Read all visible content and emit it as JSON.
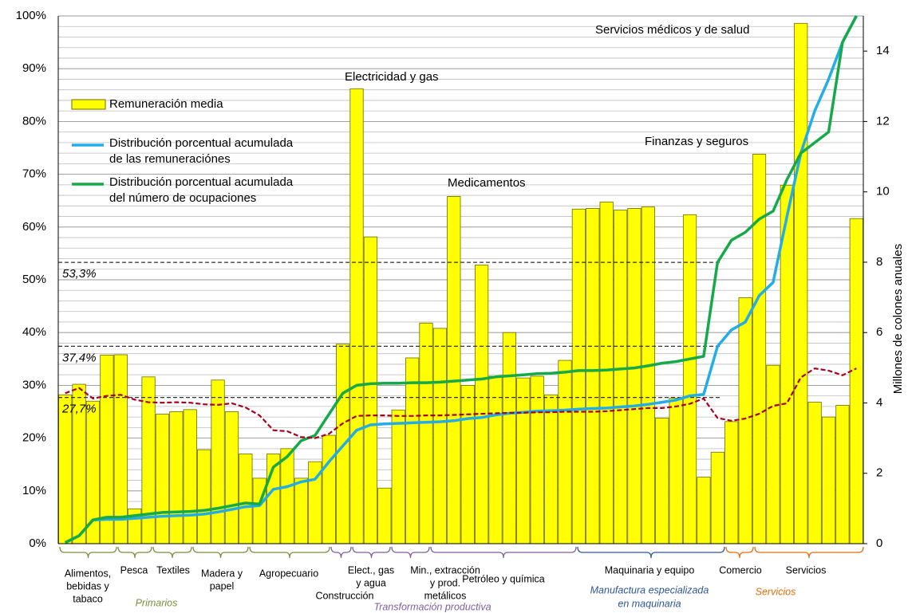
{
  "chart_data": {
    "type": "bar",
    "categories": [
      null,
      null,
      null,
      null,
      null,
      null,
      null,
      null,
      null,
      null,
      null,
      null,
      null,
      null,
      null,
      null,
      null,
      null,
      null,
      null,
      null,
      null,
      null,
      null,
      null,
      null,
      null,
      null,
      null,
      null,
      null,
      null,
      null,
      null,
      null,
      null,
      null,
      null,
      null,
      null,
      null,
      null,
      null,
      null,
      null,
      null,
      null,
      null,
      null,
      null,
      null,
      null,
      null,
      null,
      null,
      null,
      null,
      null
    ],
    "series": [
      {
        "name": "Remuneración media",
        "type": "bar",
        "axis": "y2",
        "color": "#ffff00",
        "values": [
          4.23,
          4.53,
          4.05,
          5.36,
          5.37,
          0.99,
          4.74,
          3.68,
          3.75,
          3.81,
          2.67,
          4.65,
          3.75,
          2.55,
          1.86,
          2.55,
          2.7,
          1.86,
          2.33,
          3.08,
          5.67,
          12.93,
          8.72,
          1.58,
          3.8,
          5.28,
          6.27,
          6.12,
          9.87,
          4.5,
          7.92,
          4.76,
          6.0,
          4.71,
          4.76,
          4.23,
          5.21,
          9.51,
          9.53,
          9.71,
          9.48,
          9.53,
          9.57,
          3.57,
          4.14,
          9.35,
          1.89,
          2.6,
          3.47,
          6.99,
          11.07,
          5.07,
          10.19,
          14.79,
          4.02,
          3.6,
          3.93,
          9.24
        ]
      },
      {
        "name": "Distribución porcentual acumulada de las remuneraciónes",
        "type": "line",
        "color": "#22ade6",
        "values": [
          0.2,
          1.5,
          4.5,
          4.6,
          4.6,
          4.8,
          5.0,
          5.2,
          5.3,
          5.4,
          5.6,
          6.0,
          6.5,
          7.0,
          7.2,
          10.3,
          10.8,
          11.7,
          12.2,
          15.5,
          18.5,
          21.5,
          22.5,
          22.7,
          22.8,
          22.9,
          23.0,
          23.1,
          23.3,
          23.7,
          23.9,
          24.4,
          24.7,
          24.9,
          25.1,
          25.2,
          25.3,
          25.5,
          25.6,
          25.7,
          25.9,
          26.1,
          26.4,
          26.8,
          27.2,
          28.0,
          28.3,
          37.4,
          40.5,
          42.0,
          47.0,
          49.5,
          62,
          74,
          82,
          88,
          95,
          100
        ]
      },
      {
        "name": "Distribución porcentual acumulada del número de ocupaciones",
        "type": "line",
        "color": "#16a94a",
        "values": [
          0.2,
          1.5,
          4.5,
          5.0,
          5.0,
          5.3,
          5.6,
          5.9,
          6.0,
          6.1,
          6.3,
          6.7,
          7.2,
          7.7,
          7.5,
          14.5,
          16.5,
          19.5,
          20.5,
          24.5,
          28.5,
          30.0,
          30.3,
          30.4,
          30.4,
          30.5,
          30.5,
          30.6,
          30.8,
          31.0,
          31.2,
          31.6,
          31.8,
          32.0,
          32.2,
          32.3,
          32.5,
          32.8,
          32.8,
          32.9,
          33.1,
          33.3,
          33.7,
          34.2,
          34.5,
          35.0,
          35.5,
          53.3,
          57.5,
          59.0,
          61.5,
          63.0,
          69.0,
          74.0,
          76.0,
          78.0,
          95.0,
          100
        ]
      },
      {
        "type": "line",
        "dash": true,
        "color": "#a8001c",
        "values": [
          28.5,
          29.5,
          27.5,
          28,
          28.2,
          27.3,
          26.8,
          26.7,
          26.8,
          26.7,
          26.4,
          26.3,
          26.6,
          25.8,
          24.3,
          21.5,
          21.3,
          20.2,
          20,
          20.8,
          22.8,
          24.2,
          24.3,
          24.3,
          24.2,
          24.2,
          24.3,
          24.3,
          24.4,
          24.5,
          24.6,
          24.7,
          24.8,
          24.8,
          24.9,
          24.9,
          25,
          25,
          25,
          25.1,
          25.3,
          25.5,
          25.7,
          25.7,
          26,
          26.5,
          27.5,
          23.8,
          23.3,
          23.7,
          24.6,
          26.1,
          26.6,
          31.5,
          33.2,
          32.8,
          31.9,
          33.2
        ]
      }
    ],
    "ylim": [
      0,
      100
    ],
    "yticks": [
      {
        "value": 0,
        "label": "0%"
      },
      {
        "value": 10,
        "label": "10%"
      },
      {
        "value": 20,
        "label": "20%"
      },
      {
        "value": 30,
        "label": "30%"
      },
      {
        "value": 40,
        "label": "40%"
      },
      {
        "value": 50,
        "label": "50%"
      },
      {
        "value": 60,
        "label": "60%"
      },
      {
        "value": 70,
        "label": "70%"
      },
      {
        "value": 80,
        "label": "80%"
      },
      {
        "value": 90,
        "label": "90%"
      },
      {
        "value": 100,
        "label": "100%"
      }
    ],
    "y2lim": [
      0,
      15
    ],
    "y2ticks": [
      0,
      2,
      4,
      6,
      8,
      10,
      12,
      14
    ],
    "y2label": "Millones de colones anuales",
    "grid": true,
    "grid_minor_step": 2,
    "legend": "upper left",
    "reference_lines": [
      {
        "value": 53.3,
        "label": "53,3%"
      },
      {
        "value": 37.4,
        "label": "37,4%"
      },
      {
        "value": 27.7,
        "label": "27,7%"
      }
    ],
    "annotations": [
      "Electricidad y gas",
      "Medicamentos",
      "Finanzas y seguros",
      "Servicios médicos y de salud"
    ],
    "groups": [
      [
        "Alimentos,",
        "bebidas y",
        "tabaco"
      ],
      [
        "Pesca"
      ],
      [
        "Textiles"
      ],
      [
        "Madera y",
        "papel"
      ],
      [
        "Agropecuario"
      ],
      [
        "Construcción"
      ],
      [
        "Elect., gas",
        "y agua"
      ],
      [
        "Min., extracción",
        "y prod.",
        "metálicos"
      ],
      [
        "Petróleo y química"
      ],
      [
        "Maquinaria y equipo"
      ],
      [
        "Comercio"
      ],
      [
        "Servicios"
      ]
    ],
    "sectors": [
      [
        "Primarios"
      ],
      [
        "Transformación productiva"
      ],
      [
        "Manufactura especializada",
        "en maquinaria"
      ],
      [
        "Servicios"
      ]
    ]
  }
}
